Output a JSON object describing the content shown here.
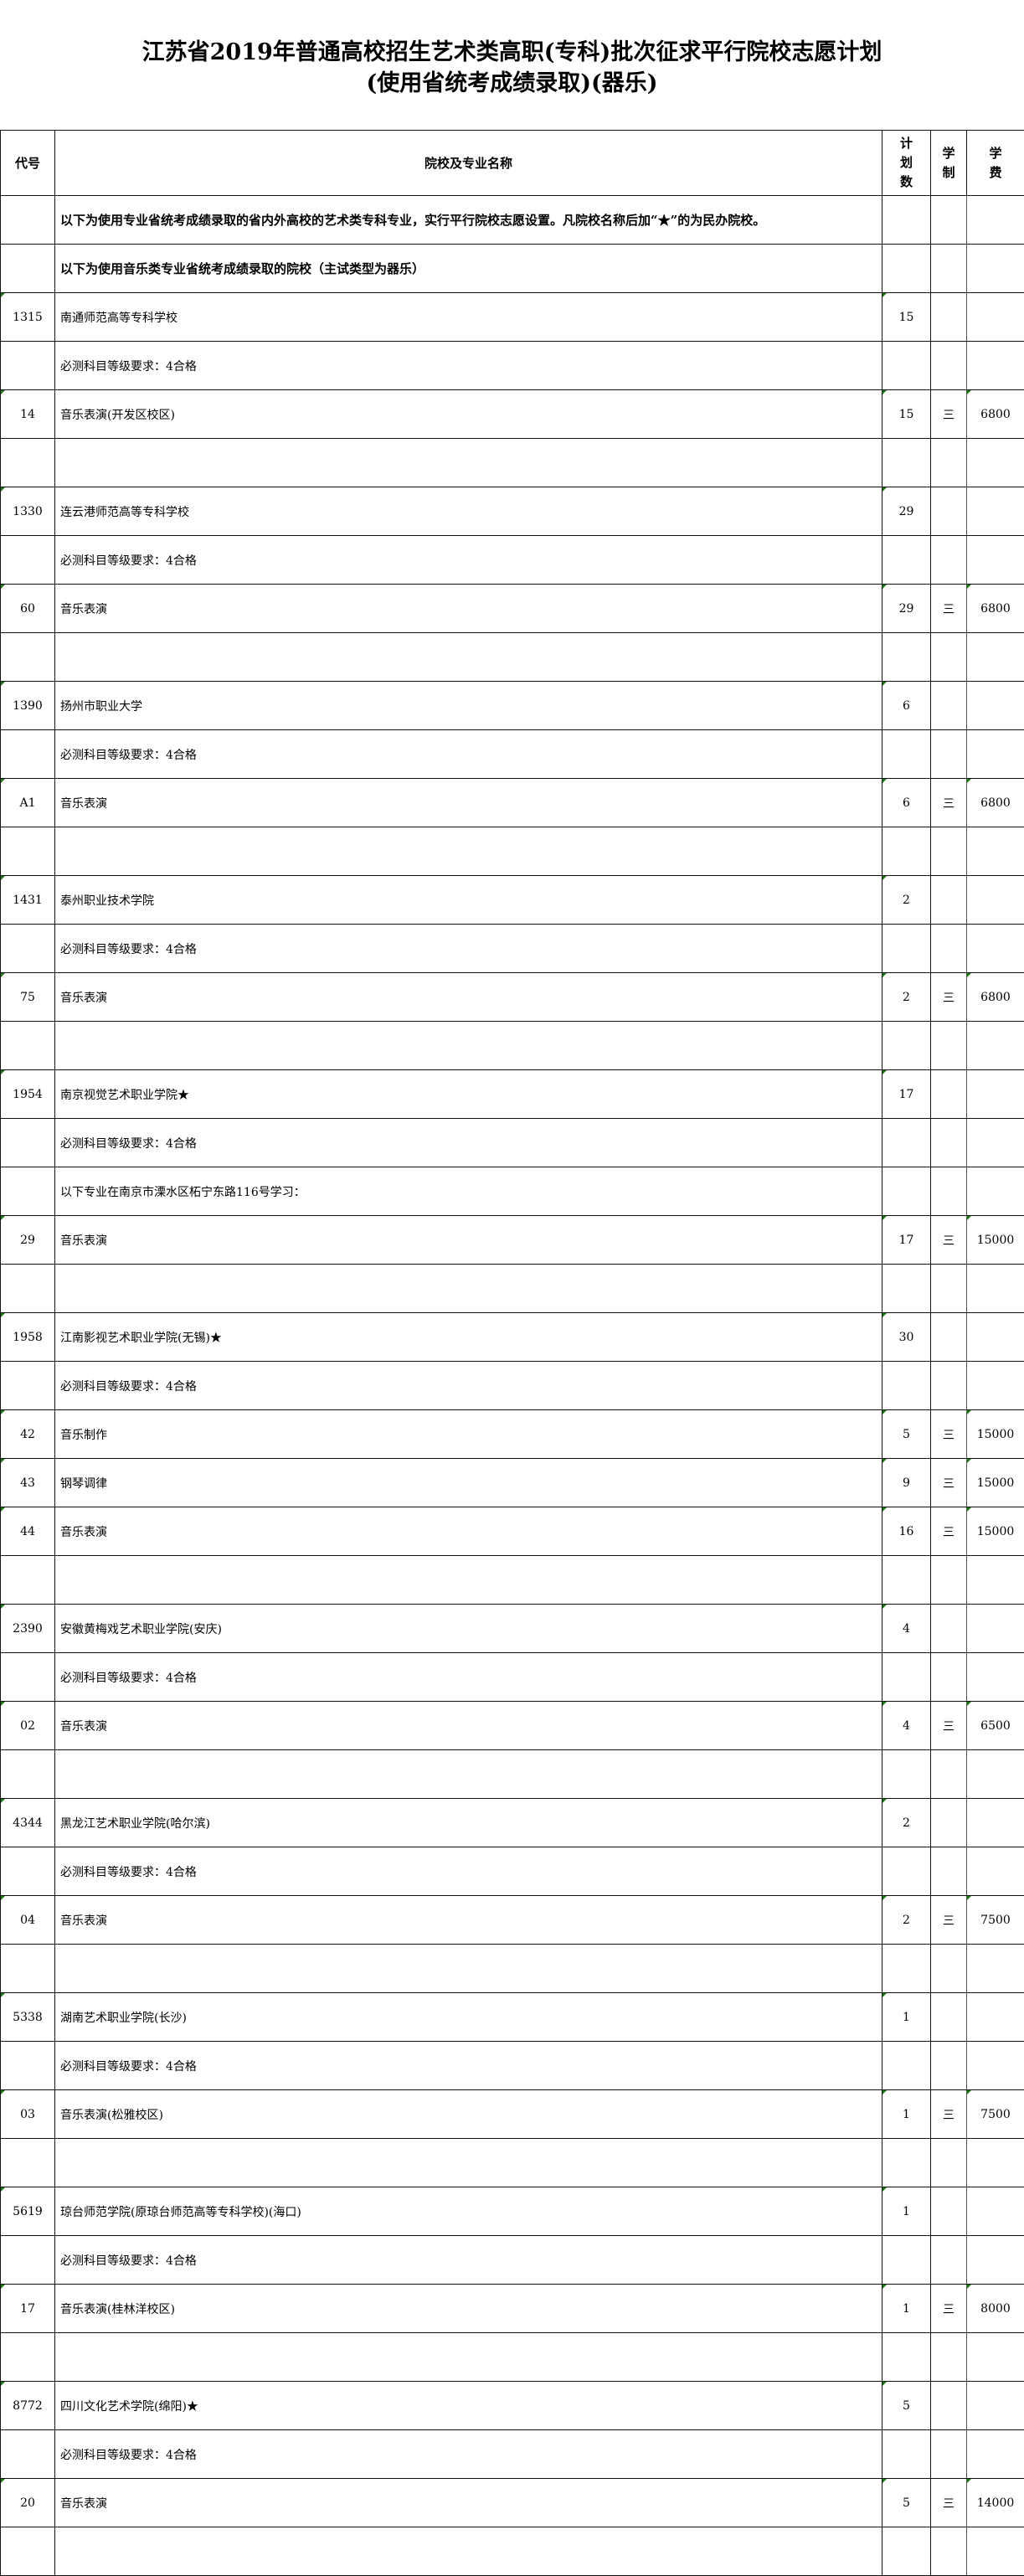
{
  "title": {
    "line1": "江苏省2019年普通高校招生艺术类高职(专科)批次征求平行院校志愿计划",
    "line2": "(使用省统考成绩录取)(器乐)"
  },
  "headers": {
    "code": "代号",
    "name": "院校及专业名称",
    "plan": "计划数",
    "length": "学制",
    "fee": "学费"
  },
  "rows": [
    {
      "code": "",
      "name": "以下为使用专业省统考成绩录取的省内外高校的艺术类专科专业，实行平行院校志愿设置。凡院校名称后加“★”的为民办院校。",
      "plan": "",
      "length": "",
      "fee": "",
      "bold": true
    },
    {
      "code": "",
      "name": "以下为使用音乐类专业省统考成绩录取的院校（主试类型为器乐）",
      "plan": "",
      "length": "",
      "fee": "",
      "bold": true
    },
    {
      "code": "1315",
      "name": "南通师范高等专科学校",
      "plan": "15",
      "length": "",
      "fee": ""
    },
    {
      "code": "",
      "name": "必测科目等级要求：4合格",
      "plan": "",
      "length": "",
      "fee": ""
    },
    {
      "code": "14",
      "name": "音乐表演(开发区校区)",
      "plan": "15",
      "length": "三",
      "fee": "6800"
    },
    {
      "code": "",
      "name": "",
      "plan": "",
      "length": "",
      "fee": ""
    },
    {
      "code": "1330",
      "name": "连云港师范高等专科学校",
      "plan": "29",
      "length": "",
      "fee": ""
    },
    {
      "code": "",
      "name": "必测科目等级要求：4合格",
      "plan": "",
      "length": "",
      "fee": ""
    },
    {
      "code": "60",
      "name": "音乐表演",
      "plan": "29",
      "length": "三",
      "fee": "6800"
    },
    {
      "code": "",
      "name": "",
      "plan": "",
      "length": "",
      "fee": ""
    },
    {
      "code": "1390",
      "name": "扬州市职业大学",
      "plan": "6",
      "length": "",
      "fee": ""
    },
    {
      "code": "",
      "name": "必测科目等级要求：4合格",
      "plan": "",
      "length": "",
      "fee": ""
    },
    {
      "code": "A1",
      "name": "音乐表演",
      "plan": "6",
      "length": "三",
      "fee": "6800"
    },
    {
      "code": "",
      "name": "",
      "plan": "",
      "length": "",
      "fee": ""
    },
    {
      "code": "1431",
      "name": "泰州职业技术学院",
      "plan": "2",
      "length": "",
      "fee": ""
    },
    {
      "code": "",
      "name": "必测科目等级要求：4合格",
      "plan": "",
      "length": "",
      "fee": ""
    },
    {
      "code": "75",
      "name": "音乐表演",
      "plan": "2",
      "length": "三",
      "fee": "6800"
    },
    {
      "code": "",
      "name": "",
      "plan": "",
      "length": "",
      "fee": ""
    },
    {
      "code": "1954",
      "name": "南京视觉艺术职业学院★",
      "plan": "17",
      "length": "",
      "fee": ""
    },
    {
      "code": "",
      "name": "必测科目等级要求：4合格",
      "plan": "",
      "length": "",
      "fee": ""
    },
    {
      "code": "",
      "name": "以下专业在南京市溧水区柘宁东路116号学习：",
      "plan": "",
      "length": "",
      "fee": ""
    },
    {
      "code": "29",
      "name": "音乐表演",
      "plan": "17",
      "length": "三",
      "fee": "15000"
    },
    {
      "code": "",
      "name": "",
      "plan": "",
      "length": "",
      "fee": ""
    },
    {
      "code": "1958",
      "name": "江南影视艺术职业学院(无锡)★",
      "plan": "30",
      "length": "",
      "fee": ""
    },
    {
      "code": "",
      "name": "必测科目等级要求：4合格",
      "plan": "",
      "length": "",
      "fee": ""
    },
    {
      "code": "42",
      "name": "音乐制作",
      "plan": "5",
      "length": "三",
      "fee": "15000"
    },
    {
      "code": "43",
      "name": "钢琴调律",
      "plan": "9",
      "length": "三",
      "fee": "15000"
    },
    {
      "code": "44",
      "name": "音乐表演",
      "plan": "16",
      "length": "三",
      "fee": "15000"
    },
    {
      "code": "",
      "name": "",
      "plan": "",
      "length": "",
      "fee": ""
    },
    {
      "code": "2390",
      "name": "安徽黄梅戏艺术职业学院(安庆)",
      "plan": "4",
      "length": "",
      "fee": ""
    },
    {
      "code": "",
      "name": "必测科目等级要求：4合格",
      "plan": "",
      "length": "",
      "fee": ""
    },
    {
      "code": "02",
      "name": "音乐表演",
      "plan": "4",
      "length": "三",
      "fee": "6500"
    },
    {
      "code": "",
      "name": "",
      "plan": "",
      "length": "",
      "fee": ""
    },
    {
      "code": "4344",
      "name": "黑龙江艺术职业学院(哈尔滨)",
      "plan": "2",
      "length": "",
      "fee": ""
    },
    {
      "code": "",
      "name": "必测科目等级要求：4合格",
      "plan": "",
      "length": "",
      "fee": ""
    },
    {
      "code": "04",
      "name": "音乐表演",
      "plan": "2",
      "length": "三",
      "fee": "7500"
    },
    {
      "code": "",
      "name": "",
      "plan": "",
      "length": "",
      "fee": ""
    },
    {
      "code": "5338",
      "name": "湖南艺术职业学院(长沙)",
      "plan": "1",
      "length": "",
      "fee": ""
    },
    {
      "code": "",
      "name": "必测科目等级要求：4合格",
      "plan": "",
      "length": "",
      "fee": ""
    },
    {
      "code": "03",
      "name": "音乐表演(松雅校区)",
      "plan": "1",
      "length": "三",
      "fee": "7500"
    },
    {
      "code": "",
      "name": "",
      "plan": "",
      "length": "",
      "fee": ""
    },
    {
      "code": "5619",
      "name": "琼台师范学院(原琼台师范高等专科学校)(海口)",
      "plan": "1",
      "length": "",
      "fee": ""
    },
    {
      "code": "",
      "name": "必测科目等级要求：4合格",
      "plan": "",
      "length": "",
      "fee": ""
    },
    {
      "code": "17",
      "name": "音乐表演(桂林洋校区)",
      "plan": "1",
      "length": "三",
      "fee": "8000"
    },
    {
      "code": "",
      "name": "",
      "plan": "",
      "length": "",
      "fee": ""
    },
    {
      "code": "8772",
      "name": "四川文化艺术学院(绵阳)★",
      "plan": "5",
      "length": "",
      "fee": ""
    },
    {
      "code": "",
      "name": "必测科目等级要求：4合格",
      "plan": "",
      "length": "",
      "fee": ""
    },
    {
      "code": "20",
      "name": "音乐表演",
      "plan": "5",
      "length": "三",
      "fee": "14000"
    },
    {
      "code": "",
      "name": "",
      "plan": "",
      "length": "",
      "fee": ""
    }
  ]
}
